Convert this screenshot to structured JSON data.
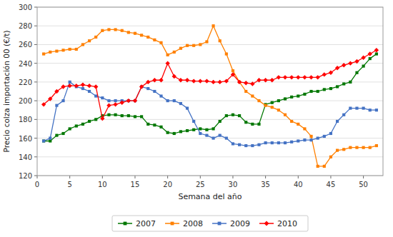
{
  "chart_data": {
    "type": "line",
    "xlabel": "Semana del año",
    "ylabel": "Precio colza importación 00 (€/t)",
    "x": [
      1,
      2,
      3,
      4,
      5,
      6,
      7,
      8,
      9,
      10,
      11,
      12,
      13,
      14,
      15,
      16,
      17,
      18,
      19,
      20,
      21,
      22,
      23,
      24,
      25,
      26,
      27,
      28,
      29,
      30,
      31,
      32,
      33,
      34,
      35,
      36,
      37,
      38,
      39,
      40,
      41,
      42,
      43,
      44,
      45,
      46,
      47,
      48,
      49,
      50,
      51,
      52
    ],
    "series": [
      {
        "name": "2007",
        "color": "#007700",
        "marker": "square",
        "values": [
          157,
          157,
          163,
          165,
          170,
          173,
          175,
          178,
          180,
          184,
          185,
          185,
          184,
          184,
          183,
          183,
          175,
          174,
          172,
          166,
          165,
          167,
          168,
          169,
          170,
          169,
          170,
          178,
          184,
          185,
          184,
          177,
          175,
          175,
          196,
          198,
          200,
          202,
          204,
          205,
          207,
          210,
          210,
          212,
          213,
          215,
          218,
          220,
          230,
          237,
          245,
          250
        ]
      },
      {
        "name": "2008",
        "color": "#FF8000",
        "marker": "square",
        "values": [
          250,
          252,
          253,
          254,
          255,
          255,
          260,
          264,
          268,
          275,
          276,
          276,
          275,
          273,
          272,
          270,
          268,
          265,
          262,
          249,
          252,
          256,
          259,
          259,
          260,
          263,
          280,
          264,
          250,
          232,
          220,
          210,
          205,
          200,
          195,
          193,
          190,
          185,
          178,
          175,
          170,
          162,
          130,
          130,
          140,
          147,
          148,
          150,
          150,
          150,
          150,
          152
        ]
      },
      {
        "name": "2009",
        "color": "#4472C4",
        "marker": "square",
        "values": [
          157,
          160,
          195,
          200,
          220,
          215,
          213,
          210,
          205,
          203,
          200,
          200,
          200,
          200,
          200,
          215,
          213,
          210,
          205,
          200,
          200,
          197,
          192,
          178,
          165,
          163,
          160,
          163,
          160,
          154,
          153,
          152,
          152,
          153,
          155,
          155,
          155,
          155,
          156,
          157,
          158,
          158,
          160,
          162,
          165,
          178,
          185,
          192,
          192,
          192,
          190,
          190
        ]
      },
      {
        "name": "2010",
        "color": "#FF0000",
        "marker": "diamond",
        "values": [
          196,
          202,
          210,
          215,
          216,
          216,
          217,
          216,
          215,
          181,
          195,
          196,
          198,
          200,
          200,
          215,
          220,
          222,
          222,
          240,
          226,
          222,
          222,
          221,
          221,
          221,
          220,
          220,
          221,
          228,
          220,
          219,
          218,
          222,
          222,
          222,
          225,
          225,
          225,
          225,
          225,
          225,
          225,
          228,
          230,
          235,
          238,
          240,
          242,
          246,
          250,
          254
        ]
      }
    ],
    "xlim": [
      0,
      53
    ],
    "ylim": [
      120,
      300
    ],
    "xticks": [
      0,
      5,
      10,
      15,
      20,
      25,
      30,
      35,
      40,
      45,
      50
    ],
    "yticks": [
      120,
      140,
      160,
      180,
      200,
      220,
      240,
      260,
      280,
      300
    ],
    "grid": true,
    "legend": "bottom"
  }
}
